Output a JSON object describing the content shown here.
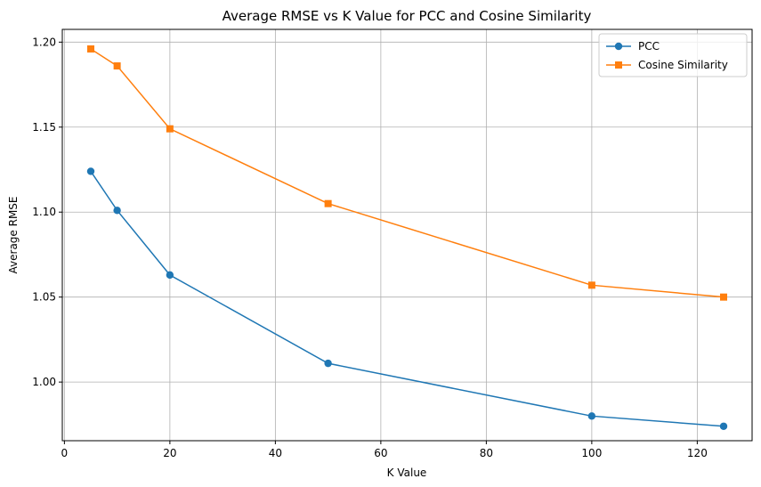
{
  "chart_data": {
    "type": "line",
    "title": "Average RMSE vs K Value for PCC and Cosine Similarity",
    "xlabel": "K Value",
    "ylabel": "Average RMSE",
    "xlim": [
      -0.4,
      130.4
    ],
    "ylim": [
      0.9655,
      1.2075
    ],
    "xticks": [
      0,
      20,
      40,
      60,
      80,
      100,
      120
    ],
    "yticks": [
      1.0,
      1.05,
      1.1,
      1.15,
      1.2
    ],
    "ytick_labels": [
      "1.00",
      "1.05",
      "1.10",
      "1.15",
      "1.20"
    ],
    "grid": true,
    "legend_position": "top-right",
    "x": [
      5,
      10,
      20,
      50,
      100,
      125
    ],
    "series": [
      {
        "name": "PCC",
        "color": "#1f77b4",
        "marker": "circle",
        "values": [
          1.124,
          1.101,
          1.063,
          1.011,
          0.98,
          0.974
        ]
      },
      {
        "name": "Cosine Similarity",
        "color": "#ff7f0e",
        "marker": "square",
        "values": [
          1.196,
          1.186,
          1.149,
          1.105,
          1.057,
          1.05
        ]
      }
    ]
  }
}
